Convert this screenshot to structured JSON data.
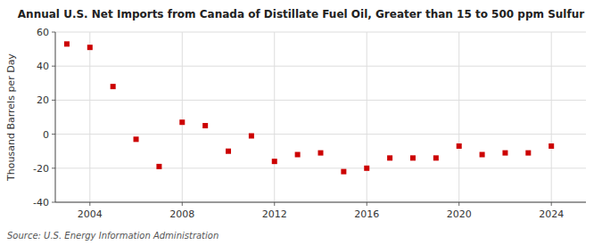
{
  "chart_data": {
    "type": "scatter",
    "title": "Annual U.S. Net Imports from Canada of Distillate Fuel Oil, Greater than 15 to 500 ppm Sulfur",
    "y_label": "Thousand Barrels per Day",
    "annotations": [
      "Source: U.S. Energy Information Administration"
    ],
    "x": [
      2003,
      2004,
      2005,
      2006,
      2007,
      2008,
      2009,
      2010,
      2011,
      2012,
      2013,
      2014,
      2015,
      2016,
      2017,
      2018,
      2019,
      2020,
      2021,
      2022,
      2023,
      2024
    ],
    "values": [
      53,
      51,
      28,
      -3,
      -19,
      7,
      5,
      -10,
      -1,
      -16,
      -12,
      -11,
      -22,
      -20,
      -14,
      -14,
      -14,
      -7,
      -12,
      -11,
      -11,
      -7
    ],
    "color": "#cc0000",
    "marker": "square",
    "xlim": [
      2002.5,
      2025.5
    ],
    "xticks": [
      2004,
      2008,
      2012,
      2016,
      2020,
      2024
    ],
    "ylim": [
      -40,
      60
    ],
    "yticks": [
      -40,
      -20,
      0,
      20,
      40,
      60
    ],
    "grid": true
  }
}
